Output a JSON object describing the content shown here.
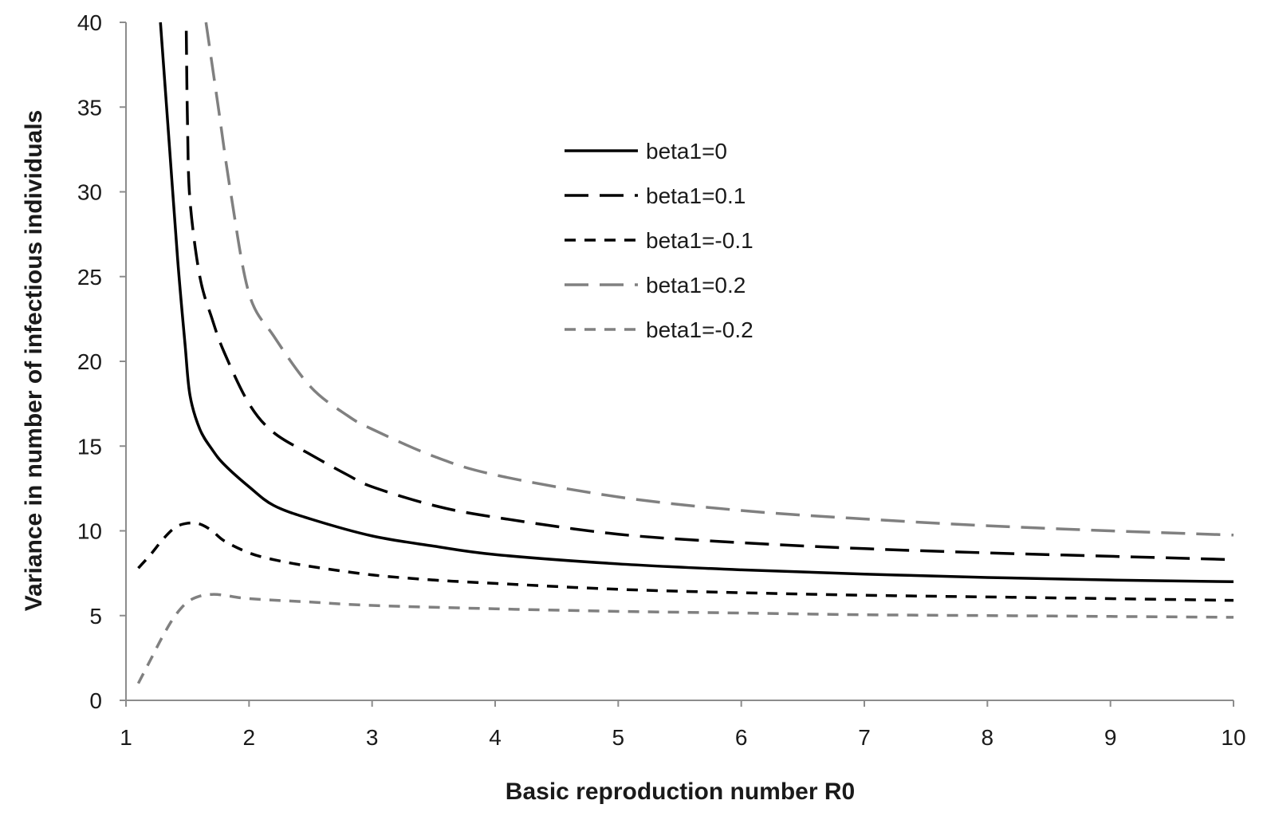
{
  "chart_data": {
    "type": "line",
    "title": "",
    "xlabel": "Basic reproduction number R0",
    "ylabel": "Variance in number of infectious individuals",
    "xlim": [
      1,
      10
    ],
    "ylim": [
      0,
      40
    ],
    "x_ticks": [
      "1",
      "2",
      "3",
      "4",
      "5",
      "6",
      "7",
      "8",
      "9",
      "10"
    ],
    "y_ticks": [
      "0",
      "5",
      "10",
      "15",
      "20",
      "25",
      "30",
      "35",
      "40"
    ],
    "grid": false,
    "legend_position": "top-center",
    "series": [
      {
        "name": "beta1=0",
        "color": "#000000",
        "dash": "solid",
        "points": [
          [
            1.28,
            40
          ],
          [
            1.35,
            33
          ],
          [
            1.42,
            26
          ],
          [
            1.48,
            21
          ],
          [
            1.52,
            18
          ],
          [
            1.6,
            16
          ],
          [
            1.7,
            14.8
          ],
          [
            1.8,
            13.9
          ],
          [
            2.0,
            12.6
          ],
          [
            2.2,
            11.5
          ],
          [
            2.5,
            10.7
          ],
          [
            3.0,
            9.7
          ],
          [
            3.5,
            9.1
          ],
          [
            4.0,
            8.6
          ],
          [
            5.0,
            8.05
          ],
          [
            6.0,
            7.7
          ],
          [
            7.0,
            7.45
          ],
          [
            8.0,
            7.25
          ],
          [
            9.0,
            7.1
          ],
          [
            10.0,
            7.0
          ]
        ]
      },
      {
        "name": "beta1=0.1",
        "color": "#000000",
        "dash": "long-dash",
        "points": [
          [
            1.49,
            39.5
          ],
          [
            1.5,
            34
          ],
          [
            1.52,
            29.5
          ],
          [
            1.6,
            25
          ],
          [
            1.7,
            22.5
          ],
          [
            1.8,
            20.5
          ],
          [
            2.0,
            17.5
          ],
          [
            2.2,
            15.8
          ],
          [
            2.5,
            14.5
          ],
          [
            2.8,
            13.3
          ],
          [
            3.0,
            12.6
          ],
          [
            3.5,
            11.5
          ],
          [
            4.0,
            10.8
          ],
          [
            5.0,
            9.8
          ],
          [
            6.0,
            9.3
          ],
          [
            7.0,
            8.95
          ],
          [
            8.0,
            8.7
          ],
          [
            9.0,
            8.5
          ],
          [
            10.0,
            8.3
          ]
        ]
      },
      {
        "name": "beta1=-0.1",
        "color": "#000000",
        "dash": "short-dash",
        "points": [
          [
            1.1,
            7.8
          ],
          [
            1.2,
            8.6
          ],
          [
            1.3,
            9.5
          ],
          [
            1.4,
            10.2
          ],
          [
            1.5,
            10.45
          ],
          [
            1.6,
            10.4
          ],
          [
            1.7,
            10.0
          ],
          [
            1.8,
            9.4
          ],
          [
            2.0,
            8.7
          ],
          [
            2.2,
            8.3
          ],
          [
            2.5,
            7.9
          ],
          [
            3.0,
            7.4
          ],
          [
            3.5,
            7.1
          ],
          [
            4.0,
            6.9
          ],
          [
            5.0,
            6.55
          ],
          [
            6.0,
            6.35
          ],
          [
            7.0,
            6.2
          ],
          [
            8.0,
            6.1
          ],
          [
            9.0,
            6.0
          ],
          [
            10.0,
            5.9
          ]
        ]
      },
      {
        "name": "beta1=0.2",
        "color": "#808080",
        "dash": "long-dash",
        "points": [
          [
            1.65,
            40
          ],
          [
            1.75,
            35
          ],
          [
            1.85,
            30
          ],
          [
            2.0,
            24
          ],
          [
            2.2,
            21.5
          ],
          [
            2.5,
            18.5
          ],
          [
            2.8,
            16.8
          ],
          [
            3.0,
            16.0
          ],
          [
            3.5,
            14.4
          ],
          [
            4.0,
            13.3
          ],
          [
            5.0,
            12.0
          ],
          [
            6.0,
            11.2
          ],
          [
            7.0,
            10.7
          ],
          [
            8.0,
            10.3
          ],
          [
            9.0,
            10.0
          ],
          [
            10.0,
            9.75
          ]
        ]
      },
      {
        "name": "beta1=-0.2",
        "color": "#808080",
        "dash": "short-dash",
        "points": [
          [
            1.1,
            1.0
          ],
          [
            1.2,
            2.4
          ],
          [
            1.3,
            3.8
          ],
          [
            1.4,
            5.0
          ],
          [
            1.5,
            5.8
          ],
          [
            1.6,
            6.15
          ],
          [
            1.7,
            6.25
          ],
          [
            1.8,
            6.2
          ],
          [
            2.0,
            6.0
          ],
          [
            2.5,
            5.8
          ],
          [
            3.0,
            5.6
          ],
          [
            4.0,
            5.4
          ],
          [
            5.0,
            5.25
          ],
          [
            6.0,
            5.15
          ],
          [
            7.0,
            5.05
          ],
          [
            8.0,
            5.0
          ],
          [
            9.0,
            4.95
          ],
          [
            10.0,
            4.9
          ]
        ]
      }
    ]
  }
}
